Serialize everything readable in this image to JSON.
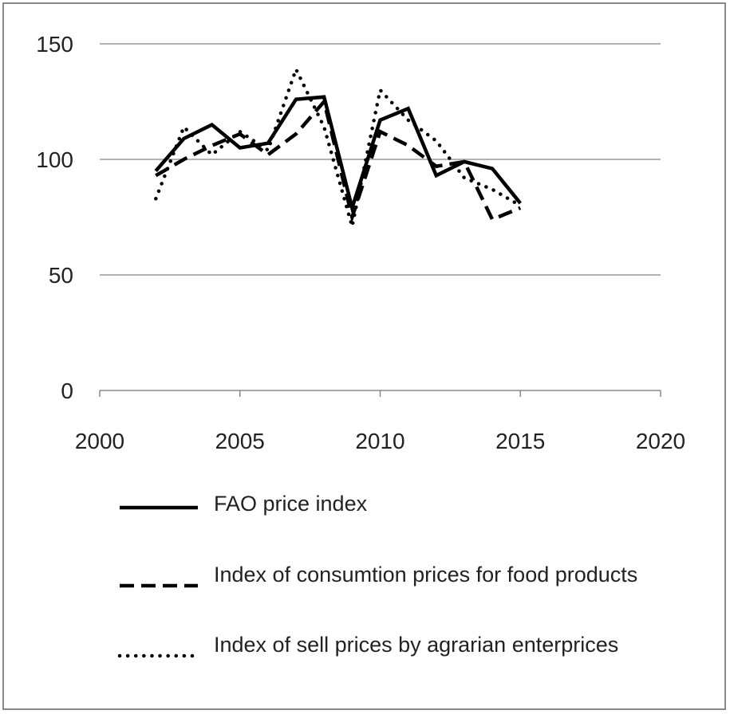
{
  "chart_data": {
    "type": "line",
    "title": "",
    "xlabel": "",
    "ylabel": "",
    "xlim": [
      2000,
      2020
    ],
    "ylim": [
      0,
      150
    ],
    "x_ticks": [
      2000,
      2005,
      2010,
      2015,
      2020
    ],
    "y_ticks": [
      0,
      50,
      100,
      150
    ],
    "grid": "horizontal",
    "legend_position": "bottom",
    "series": [
      {
        "name": "FAO price index",
        "style": "solid",
        "color": "#000000",
        "x": [
          2002,
          2003,
          2004,
          2005,
          2006,
          2007,
          2008,
          2009,
          2010,
          2011,
          2012,
          2013,
          2014,
          2015
        ],
        "y": [
          95,
          109,
          115,
          105,
          107,
          126,
          127,
          79,
          117,
          122,
          93,
          99,
          96,
          81
        ]
      },
      {
        "name": "Index of consumtion prices for food products",
        "style": "dashed",
        "color": "#000000",
        "x": [
          2002,
          2003,
          2004,
          2005,
          2006,
          2007,
          2008,
          2009,
          2010,
          2011,
          2012,
          2013,
          2014,
          2015
        ],
        "y": [
          93,
          100,
          106,
          111,
          102,
          111,
          125,
          75,
          112,
          106,
          97,
          99,
          74,
          79
        ]
      },
      {
        "name": "Index of sell prices by agrarian enterprices",
        "style": "dotted",
        "color": "#000000",
        "x": [
          2002,
          2003,
          2004,
          2005,
          2006,
          2007,
          2008,
          2009,
          2010,
          2011,
          2012,
          2013,
          2014,
          2015
        ],
        "y": [
          83,
          114,
          102,
          112,
          104,
          139,
          114,
          71,
          130,
          117,
          108,
          92,
          87,
          80
        ]
      }
    ]
  }
}
